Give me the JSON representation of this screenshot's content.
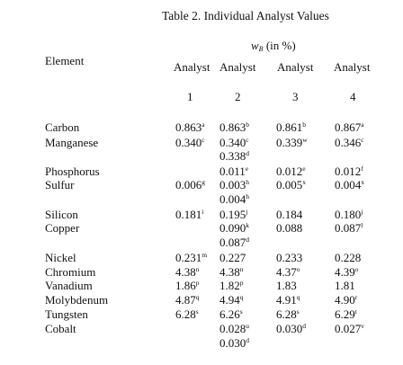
{
  "table": {
    "title": "Table 2.  Individual Analyst Values",
    "unit_symbol": "w",
    "unit_subscript": "B",
    "unit_suffix": " (in %)",
    "element_header": "Element",
    "analyst_headers": [
      "Analyst",
      "Analyst",
      "Analyst",
      "Analyst"
    ],
    "analyst_numbers": [
      "1",
      "2",
      "3",
      "4"
    ],
    "rows": [
      {
        "element": "Carbon",
        "cells": [
          {
            "v": "0.863",
            "n": "a"
          },
          {
            "v": "0.863",
            "n": "b"
          },
          {
            "v": "0.861",
            "n": "b"
          },
          {
            "v": "0.867",
            "n": "a"
          }
        ]
      },
      {
        "element": "Manganese",
        "cells": [
          {
            "v": "0.340",
            "n": "c"
          },
          {
            "v": "0.340",
            "n": "c"
          },
          {
            "v": "0.339",
            "n": "w"
          },
          {
            "v": "0.346",
            "n": "c"
          }
        ]
      },
      {
        "element": "",
        "cells": [
          {
            "v": "",
            "n": ""
          },
          {
            "v": "0.338",
            "n": "d"
          },
          {
            "v": "",
            "n": ""
          },
          {
            "v": "",
            "n": ""
          }
        ]
      },
      {
        "element": "Phosphorus",
        "cells": [
          {
            "v": "",
            "n": ""
          },
          {
            "v": "0.011",
            "n": "e"
          },
          {
            "v": "0.012",
            "n": "e"
          },
          {
            "v": "0.012",
            "n": "f"
          }
        ]
      },
      {
        "element": "Sulfur",
        "cells": [
          {
            "v": "0.006",
            "n": "g"
          },
          {
            "v": "0.003",
            "n": "h"
          },
          {
            "v": "0.005",
            "n": "x"
          },
          {
            "v": "0.004",
            "n": "x"
          }
        ]
      },
      {
        "element": "",
        "cells": [
          {
            "v": "",
            "n": ""
          },
          {
            "v": "0.004",
            "n": "h"
          },
          {
            "v": "",
            "n": ""
          },
          {
            "v": "",
            "n": ""
          }
        ]
      },
      {
        "element": "Silicon",
        "cells": [
          {
            "v": "0.181",
            "n": "i"
          },
          {
            "v": "0.195",
            "n": "j"
          },
          {
            "v": "0.184",
            "n": ""
          },
          {
            "v": "0.180",
            "n": "j"
          }
        ]
      },
      {
        "element": "Copper",
        "cells": [
          {
            "v": "",
            "n": ""
          },
          {
            "v": "0.090",
            "n": "k"
          },
          {
            "v": "0.088",
            "n": ""
          },
          {
            "v": "0.087",
            "n": "l"
          }
        ]
      },
      {
        "element": "",
        "cells": [
          {
            "v": "",
            "n": ""
          },
          {
            "v": "0.087",
            "n": "d"
          },
          {
            "v": "",
            "n": ""
          },
          {
            "v": "",
            "n": ""
          }
        ]
      },
      {
        "element": "Nickel",
        "cells": [
          {
            "v": "0.231",
            "n": "m"
          },
          {
            "v": "0.227",
            "n": ""
          },
          {
            "v": "0.233",
            "n": ""
          },
          {
            "v": "0.228",
            "n": ""
          }
        ]
      },
      {
        "element": "Chromium",
        "cells": [
          {
            "v": "4.38",
            "n": "n"
          },
          {
            "v": "4.38",
            "n": "n"
          },
          {
            "v": "4.37",
            "n": "o"
          },
          {
            "v": "4.39",
            "n": "o"
          }
        ]
      },
      {
        "element": "Vanadium",
        "cells": [
          {
            "v": "1.86",
            "n": "p"
          },
          {
            "v": "1.82",
            "n": "p"
          },
          {
            "v": "1.83",
            "n": ""
          },
          {
            "v": "1.81",
            "n": ""
          }
        ]
      },
      {
        "element": "Molybdenum",
        "cells": [
          {
            "v": "4.87",
            "n": "q"
          },
          {
            "v": "4.94",
            "n": "q"
          },
          {
            "v": "4.91",
            "n": "q"
          },
          {
            "v": "4.90",
            "n": "r"
          }
        ]
      },
      {
        "element": "Tungsten",
        "cells": [
          {
            "v": "6.28",
            "n": "s"
          },
          {
            "v": "6.26",
            "n": "s"
          },
          {
            "v": "6.28",
            "n": "s"
          },
          {
            "v": "6.29",
            "n": "t"
          }
        ]
      },
      {
        "element": "Cobalt",
        "cells": [
          {
            "v": "",
            "n": ""
          },
          {
            "v": "0.028",
            "n": "u"
          },
          {
            "v": "0.030",
            "n": "d"
          },
          {
            "v": "0.027",
            "n": "v"
          }
        ]
      },
      {
        "element": "",
        "cells": [
          {
            "v": "",
            "n": ""
          },
          {
            "v": "0.030",
            "n": "d"
          },
          {
            "v": "",
            "n": ""
          },
          {
            "v": "",
            "n": ""
          }
        ]
      }
    ]
  }
}
